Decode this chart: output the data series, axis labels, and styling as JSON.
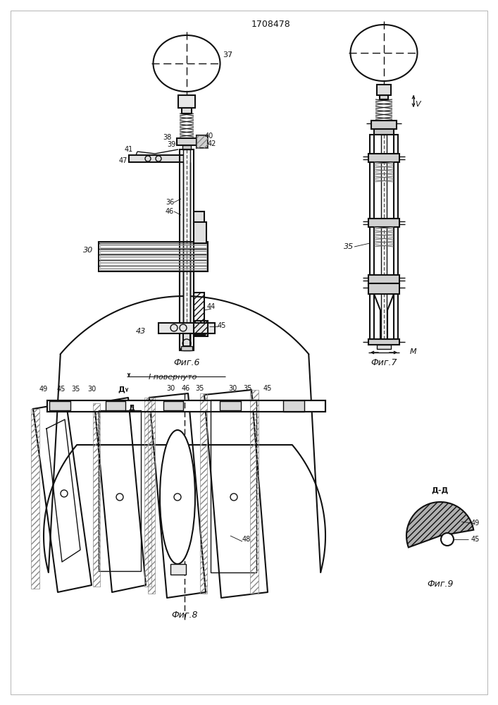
{
  "bg_color": "#ffffff",
  "line_color": "#111111",
  "patent_number": "1708478",
  "fig6_label": "Фиг.6",
  "fig7_label": "Фиг.7",
  "fig8_label": "Фиг.8",
  "fig9_label": "Фиг.9",
  "fig8_note": "I повернуто",
  "DD_label": "Д-Д"
}
